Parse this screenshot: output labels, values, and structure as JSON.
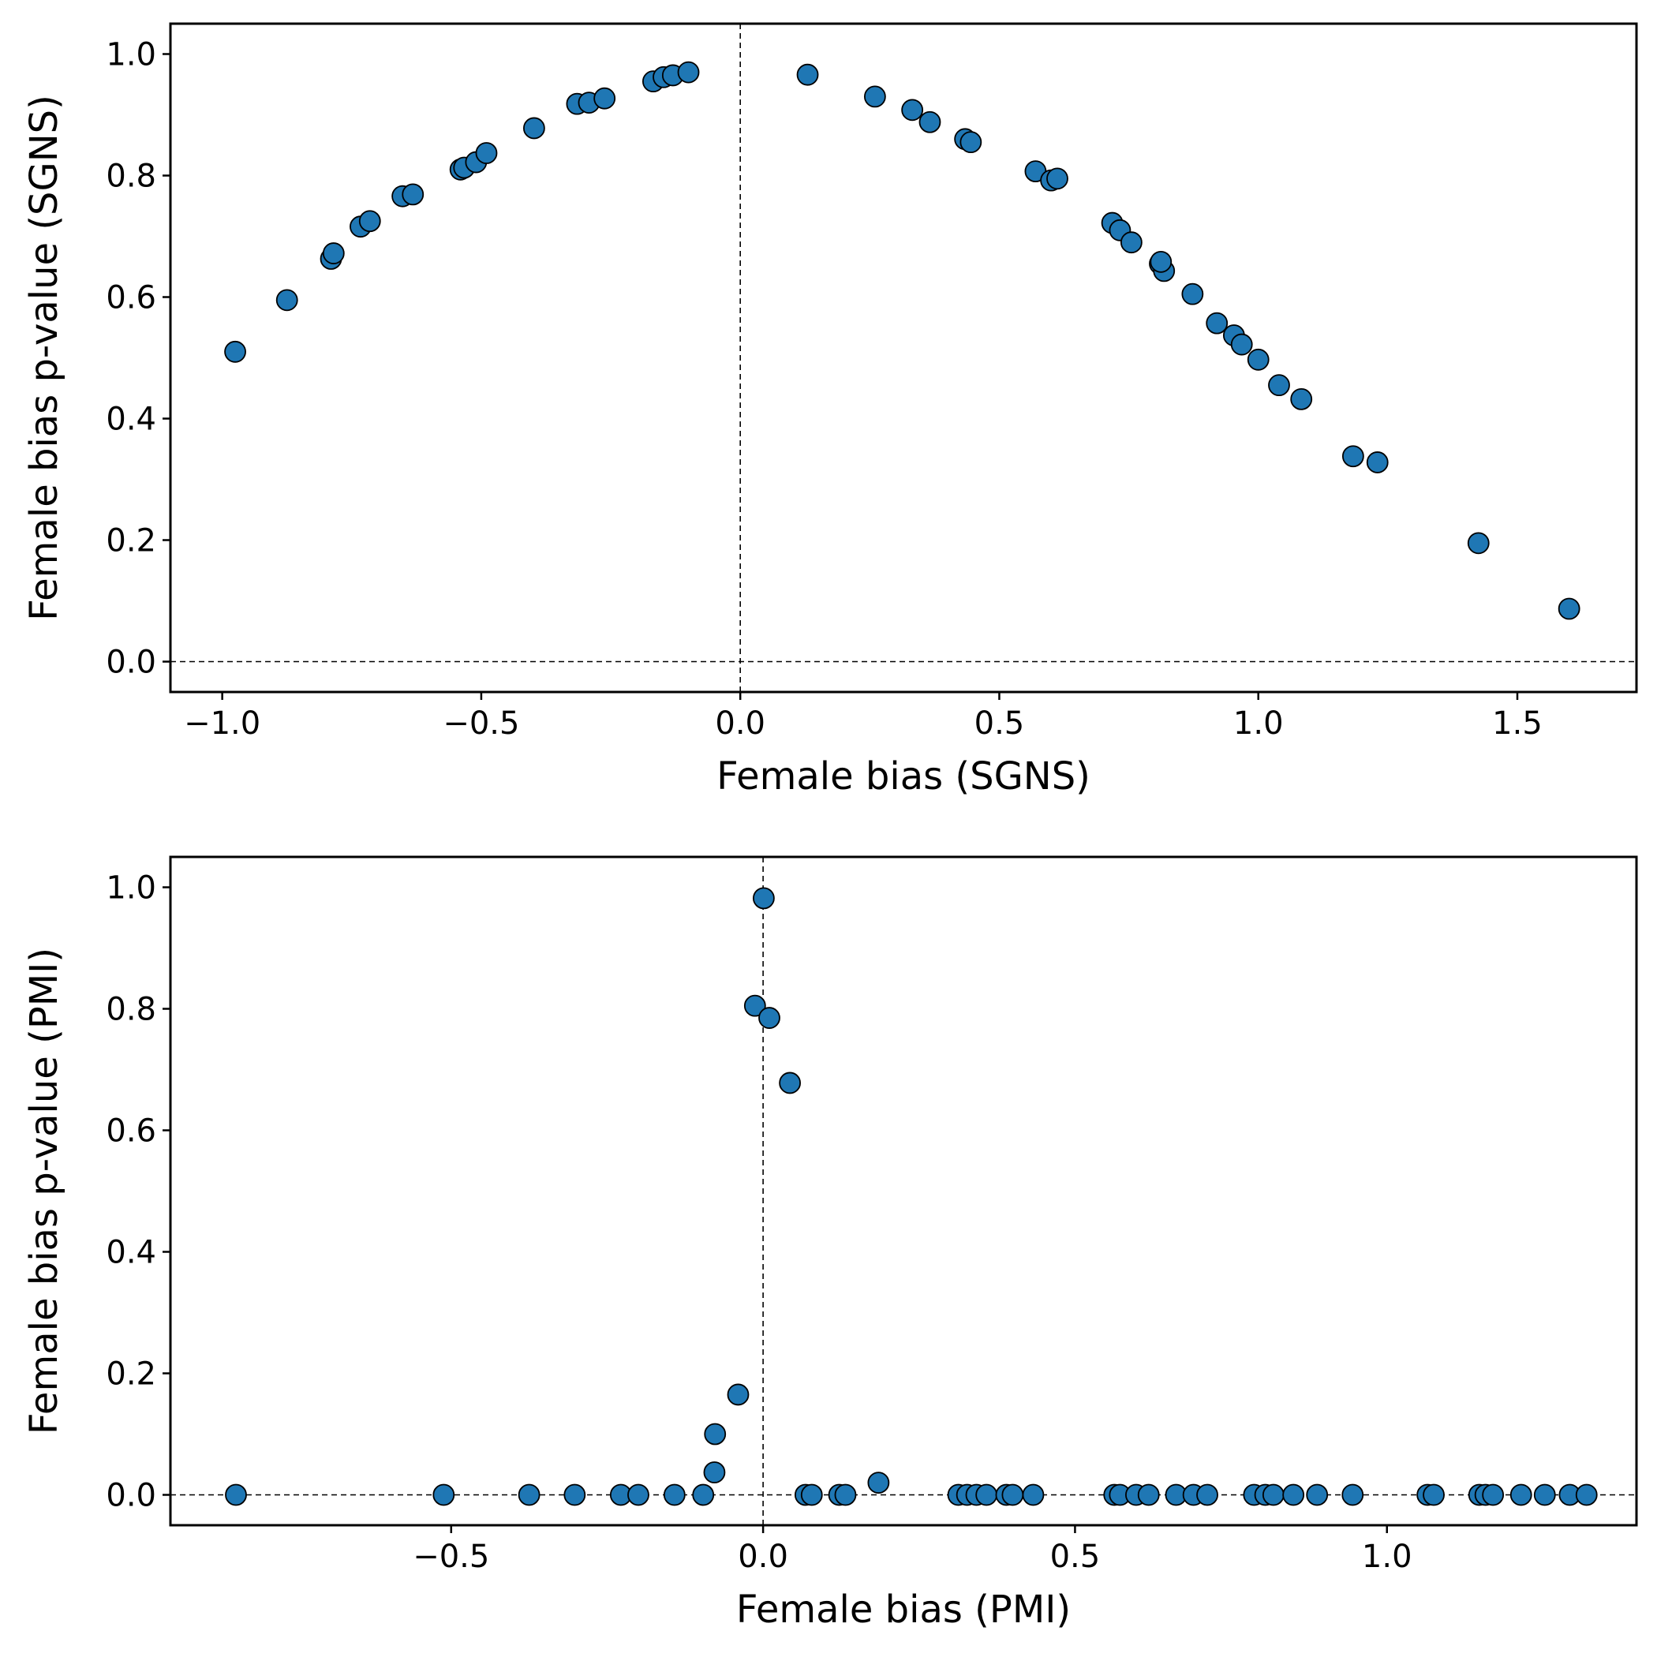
{
  "chart_data": [
    {
      "type": "scatter",
      "title": "",
      "xlabel": "Female bias (SGNS)",
      "ylabel": "Female bias p-value (SGNS)",
      "xlim": [
        -1.1,
        1.73
      ],
      "ylim": [
        -0.05,
        1.05
      ],
      "xticks": [
        -1.0,
        -0.5,
        0.0,
        0.5,
        1.0,
        1.5
      ],
      "xtick_labels": [
        "−1.0",
        "−0.5",
        "0.0",
        "0.5",
        "1.0",
        "1.5"
      ],
      "yticks": [
        0.0,
        0.2,
        0.4,
        0.6,
        0.8,
        1.0
      ],
      "ytick_labels": [
        "0.0",
        "0.2",
        "0.4",
        "0.6",
        "0.8",
        "1.0"
      ],
      "reference_lines": {
        "vertical_x": 0.0,
        "horizontal_y": 0.0,
        "style": "dashed"
      },
      "grid": false,
      "marker_color": "#1f77b4",
      "marker_edge_color": "#000000",
      "points": [
        {
          "x": -0.975,
          "y": 0.51
        },
        {
          "x": -0.875,
          "y": 0.595
        },
        {
          "x": -0.79,
          "y": 0.663
        },
        {
          "x": -0.785,
          "y": 0.672
        },
        {
          "x": -0.733,
          "y": 0.716
        },
        {
          "x": -0.715,
          "y": 0.725
        },
        {
          "x": -0.652,
          "y": 0.766
        },
        {
          "x": -0.632,
          "y": 0.769
        },
        {
          "x": -0.54,
          "y": 0.81
        },
        {
          "x": -0.533,
          "y": 0.813
        },
        {
          "x": -0.51,
          "y": 0.822
        },
        {
          "x": -0.49,
          "y": 0.837
        },
        {
          "x": -0.398,
          "y": 0.878
        },
        {
          "x": -0.315,
          "y": 0.918
        },
        {
          "x": -0.292,
          "y": 0.92
        },
        {
          "x": -0.262,
          "y": 0.927
        },
        {
          "x": -0.168,
          "y": 0.955
        },
        {
          "x": -0.148,
          "y": 0.962
        },
        {
          "x": -0.13,
          "y": 0.965
        },
        {
          "x": -0.1,
          "y": 0.97
        },
        {
          "x": 0.13,
          "y": 0.966
        },
        {
          "x": 0.26,
          "y": 0.93
        },
        {
          "x": 0.332,
          "y": 0.908
        },
        {
          "x": 0.366,
          "y": 0.888
        },
        {
          "x": 0.434,
          "y": 0.86
        },
        {
          "x": 0.445,
          "y": 0.855
        },
        {
          "x": 0.57,
          "y": 0.807
        },
        {
          "x": 0.6,
          "y": 0.792
        },
        {
          "x": 0.612,
          "y": 0.795
        },
        {
          "x": 0.718,
          "y": 0.722
        },
        {
          "x": 0.733,
          "y": 0.71
        },
        {
          "x": 0.755,
          "y": 0.69
        },
        {
          "x": 0.81,
          "y": 0.655
        },
        {
          "x": 0.818,
          "y": 0.643
        },
        {
          "x": 0.812,
          "y": 0.658
        },
        {
          "x": 0.873,
          "y": 0.605
        },
        {
          "x": 0.92,
          "y": 0.557
        },
        {
          "x": 0.953,
          "y": 0.537
        },
        {
          "x": 0.968,
          "y": 0.522
        },
        {
          "x": 1.0,
          "y": 0.497
        },
        {
          "x": 1.04,
          "y": 0.455
        },
        {
          "x": 1.083,
          "y": 0.432
        },
        {
          "x": 1.183,
          "y": 0.338
        },
        {
          "x": 1.23,
          "y": 0.328
        },
        {
          "x": 1.425,
          "y": 0.195
        },
        {
          "x": 1.6,
          "y": 0.087
        }
      ]
    },
    {
      "type": "scatter",
      "title": "",
      "xlabel": "Female bias (PMI)",
      "ylabel": "Female bias p-value (PMI)",
      "xlim": [
        -0.95,
        1.4
      ],
      "ylim": [
        -0.05,
        1.05
      ],
      "xticks": [
        -0.5,
        0.0,
        0.5,
        1.0
      ],
      "xtick_labels": [
        "−0.5",
        "0.0",
        "0.5",
        "1.0"
      ],
      "yticks": [
        0.0,
        0.2,
        0.4,
        0.6,
        0.8,
        1.0
      ],
      "ytick_labels": [
        "0.0",
        "0.2",
        "0.4",
        "0.6",
        "0.8",
        "1.0"
      ],
      "reference_lines": {
        "vertical_x": 0.0,
        "horizontal_y": 0.0,
        "style": "dashed"
      },
      "grid": false,
      "marker_color": "#1f77b4",
      "marker_edge_color": "#000000",
      "points": [
        {
          "x": -0.845,
          "y": 0.0
        },
        {
          "x": -0.512,
          "y": 0.0
        },
        {
          "x": -0.375,
          "y": 0.0
        },
        {
          "x": -0.302,
          "y": 0.0
        },
        {
          "x": -0.228,
          "y": 0.0
        },
        {
          "x": -0.2,
          "y": 0.0
        },
        {
          "x": -0.142,
          "y": 0.0
        },
        {
          "x": -0.096,
          "y": 0.0
        },
        {
          "x": -0.078,
          "y": 0.037
        },
        {
          "x": -0.077,
          "y": 0.1
        },
        {
          "x": -0.04,
          "y": 0.165
        },
        {
          "x": -0.013,
          "y": 0.805
        },
        {
          "x": 0.001,
          "y": 0.982
        },
        {
          "x": 0.01,
          "y": 0.785
        },
        {
          "x": 0.043,
          "y": 0.678
        },
        {
          "x": 0.068,
          "y": 0.0
        },
        {
          "x": 0.078,
          "y": 0.0
        },
        {
          "x": 0.122,
          "y": 0.0
        },
        {
          "x": 0.132,
          "y": 0.0
        },
        {
          "x": 0.185,
          "y": 0.02
        },
        {
          "x": 0.313,
          "y": 0.0
        },
        {
          "x": 0.327,
          "y": 0.0
        },
        {
          "x": 0.342,
          "y": 0.0
        },
        {
          "x": 0.358,
          "y": 0.0
        },
        {
          "x": 0.39,
          "y": 0.0
        },
        {
          "x": 0.4,
          "y": 0.0
        },
        {
          "x": 0.433,
          "y": 0.0
        },
        {
          "x": 0.563,
          "y": 0.0
        },
        {
          "x": 0.572,
          "y": 0.0
        },
        {
          "x": 0.598,
          "y": 0.0
        },
        {
          "x": 0.618,
          "y": 0.0
        },
        {
          "x": 0.662,
          "y": 0.0
        },
        {
          "x": 0.69,
          "y": 0.0
        },
        {
          "x": 0.712,
          "y": 0.0
        },
        {
          "x": 0.787,
          "y": 0.0
        },
        {
          "x": 0.805,
          "y": 0.0
        },
        {
          "x": 0.818,
          "y": 0.0
        },
        {
          "x": 0.85,
          "y": 0.0
        },
        {
          "x": 0.888,
          "y": 0.0
        },
        {
          "x": 0.945,
          "y": 0.0
        },
        {
          "x": 1.065,
          "y": 0.0
        },
        {
          "x": 1.075,
          "y": 0.0
        },
        {
          "x": 1.148,
          "y": 0.0
        },
        {
          "x": 1.158,
          "y": 0.0
        },
        {
          "x": 1.17,
          "y": 0.0
        },
        {
          "x": 1.215,
          "y": 0.0
        },
        {
          "x": 1.253,
          "y": 0.0
        },
        {
          "x": 1.293,
          "y": 0.0
        },
        {
          "x": 1.32,
          "y": 0.0
        }
      ]
    }
  ]
}
